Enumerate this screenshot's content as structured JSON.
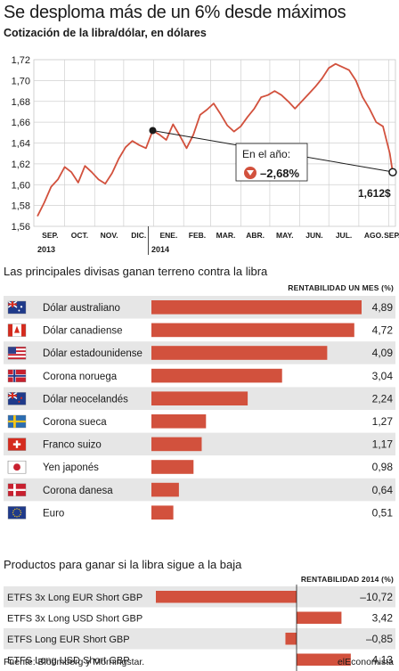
{
  "header": {
    "title": "Se desploma más de un 6% desde máximos",
    "subtitle": "Cotización de la libra/dólar, en dólares"
  },
  "chart_data": [
    {
      "type": "line",
      "title": "Se desploma más de un 6% desde máximos",
      "subtitle": "Cotización de la libra/dólar, en dólares",
      "ylim": [
        1.56,
        1.72
      ],
      "y_ticks": [
        "1,56",
        "1,58",
        "1,60",
        "1,62",
        "1,64",
        "1,66",
        "1,68",
        "1,70",
        "1,72"
      ],
      "x_tick_labels": [
        "SEP.",
        "OCT.",
        "NOV.",
        "DIC.",
        "ENE.",
        "FEB.",
        "MAR.",
        "ABR.",
        "MAY.",
        "JUL.",
        "JUN.",
        "JUL.",
        "AGO.",
        "SEP."
      ],
      "x_tick_labels_actual": [
        "SEP.",
        "OCT.",
        "NOV.",
        "DIC.",
        "ENE.",
        "FEB.",
        "MAR.",
        "ABR.",
        "MAY.",
        "JUN.",
        "JUL.",
        "AGO.",
        "SEP."
      ],
      "year_labels": [
        "2013",
        "2014"
      ],
      "grid": true,
      "series": [
        {
          "x": [
            "2013-09-03",
            "2013-09-10",
            "2013-09-17",
            "2013-09-24",
            "2013-10-01",
            "2013-10-08",
            "2013-10-15",
            "2013-10-22",
            "2013-10-29",
            "2013-11-05",
            "2013-11-12",
            "2013-11-19",
            "2013-11-26",
            "2013-12-03",
            "2013-12-10",
            "2013-12-17",
            "2013-12-24",
            "2013-12-31",
            "2014-01-07",
            "2014-01-14",
            "2014-01-21",
            "2014-01-28",
            "2014-02-04",
            "2014-02-11",
            "2014-02-18",
            "2014-02-25",
            "2014-03-04",
            "2014-03-11",
            "2014-03-18",
            "2014-03-25",
            "2014-04-01",
            "2014-04-08",
            "2014-04-15",
            "2014-04-22",
            "2014-04-29",
            "2014-05-06",
            "2014-05-13",
            "2014-05-20",
            "2014-05-27",
            "2014-06-03",
            "2014-06-10",
            "2014-06-17",
            "2014-06-24",
            "2014-07-01",
            "2014-07-08",
            "2014-07-15",
            "2014-07-22",
            "2014-07-29",
            "2014-08-05",
            "2014-08-12",
            "2014-08-19",
            "2014-08-26",
            "2014-09-02",
            "2014-09-05"
          ],
          "values": [
            1.57,
            1.583,
            1.598,
            1.605,
            1.617,
            1.612,
            1.602,
            1.618,
            1.612,
            1.605,
            1.601,
            1.611,
            1.625,
            1.636,
            1.642,
            1.638,
            1.635,
            1.652,
            1.648,
            1.643,
            1.658,
            1.647,
            1.635,
            1.648,
            1.667,
            1.672,
            1.678,
            1.668,
            1.657,
            1.651,
            1.656,
            1.665,
            1.673,
            1.684,
            1.686,
            1.69,
            1.686,
            1.68,
            1.673,
            1.68,
            1.687,
            1.694,
            1.702,
            1.712,
            1.716,
            1.713,
            1.71,
            1.7,
            1.684,
            1.673,
            1.66,
            1.656,
            1.63,
            1.612
          ]
        }
      ],
      "annotations": {
        "in_year_label": "En el año:",
        "in_year_value": "–2,68%",
        "last_value": "1,612$"
      }
    },
    {
      "type": "bar",
      "title": "Las principales divisas ganan terreno contra la libra",
      "column_header": "RENTABILIDAD UN MES (%)",
      "categories": [
        "Dólar australiano",
        "Dólar canadiense",
        "Dólar estadounidense",
        "Corona noruega",
        "Dólar neocelandés",
        "Corona sueca",
        "Franco suizo",
        "Yen japonés",
        "Corona danesa",
        "Euro"
      ],
      "values": [
        4.89,
        4.72,
        4.09,
        3.04,
        2.24,
        1.27,
        1.17,
        0.98,
        0.64,
        0.51
      ],
      "value_labels": [
        "4,89",
        "4,72",
        "4,09",
        "3,04",
        "2,24",
        "1,27",
        "1,17",
        "0,98",
        "0,64",
        "0,51"
      ],
      "flags": [
        "au-flag-icon",
        "ca-flag-icon",
        "us-flag-icon",
        "no-flag-icon",
        "nz-flag-icon",
        "se-flag-icon",
        "ch-flag-icon",
        "jp-flag-icon",
        "dk-flag-icon",
        "eu-flag-icon"
      ],
      "bar_color": "#d2513d"
    },
    {
      "type": "bar",
      "title": "Productos para ganar si la libra sigue a la baja",
      "column_header": "RENTABILIDAD 2014 (%)",
      "categories": [
        "ETFS 3x Long EUR Short GBP",
        "ETFS 3x Long USD Short GBP",
        "ETFS Long EUR Short GBP",
        "ETFS Long USD Short GBP"
      ],
      "values": [
        -10.72,
        3.42,
        -0.85,
        4.13
      ],
      "value_labels": [
        "–10,72",
        "3,42",
        "–0,85",
        "4,13"
      ],
      "bar_color": "#d2513d"
    }
  ],
  "footer": {
    "source": "Fuente: Bloomberg y Morningstar.",
    "brand": "elEconomista"
  },
  "colors": {
    "line": "#d2513d",
    "bar": "#d2513d",
    "row_alt": "#e6e6e6",
    "plot_bg": "#e9e9e9"
  }
}
